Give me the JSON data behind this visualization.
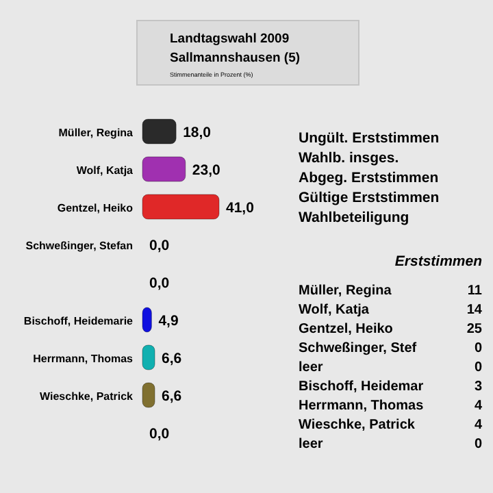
{
  "chart_data": [
    {
      "type": "bar",
      "orientation": "horizontal",
      "title": "Landtagswahl 2009",
      "subtitle": "Sallmannshausen (5)",
      "annotations": [
        "Stimmenanteile in Prozent (%)"
      ],
      "categories": [
        "Müller, Regina",
        "Wolf, Katja",
        "Gentzel, Heiko",
        "Schweßinger, Stefan",
        null,
        "Bischoff, Heidemarie",
        "Herrmann, Thomas",
        "Wieschke, Patrick",
        null
      ],
      "values": [
        18.0,
        23.0,
        41.0,
        0.0,
        0.0,
        4.9,
        6.6,
        6.6,
        0.0
      ],
      "value_labels": [
        "18,0",
        "23,0",
        "41,0",
        "0,0",
        "0,0",
        "4,9",
        "6,6",
        "6,6",
        "0,0"
      ],
      "colors": [
        "#2a2a2a",
        "#a030b0",
        "#e02828",
        "#108010",
        "#c84860",
        "#1010e0",
        "#10b0b0",
        "#807030",
        "#b8b8b8"
      ]
    },
    {
      "type": "other",
      "title": "Erststimmen",
      "annotations": [
        "Ungült. Erststimmen",
        "Wahlb. insges.",
        "Abgeg. Erststimmen",
        "Gültige Erststimmen",
        "Wahlbeteiligung"
      ],
      "categories": [
        "Müller, Regina",
        "Wolf, Katja",
        "Gentzel, Heiko",
        "Schweßinger, Stef",
        "leer",
        "Bischoff, Heidemar",
        "Herrmann, Thomas",
        "Wieschke, Patrick",
        "leer"
      ],
      "values": [
        11,
        14,
        25,
        0,
        0,
        3,
        4,
        4,
        0
      ],
      "data_labels": true
    }
  ]
}
